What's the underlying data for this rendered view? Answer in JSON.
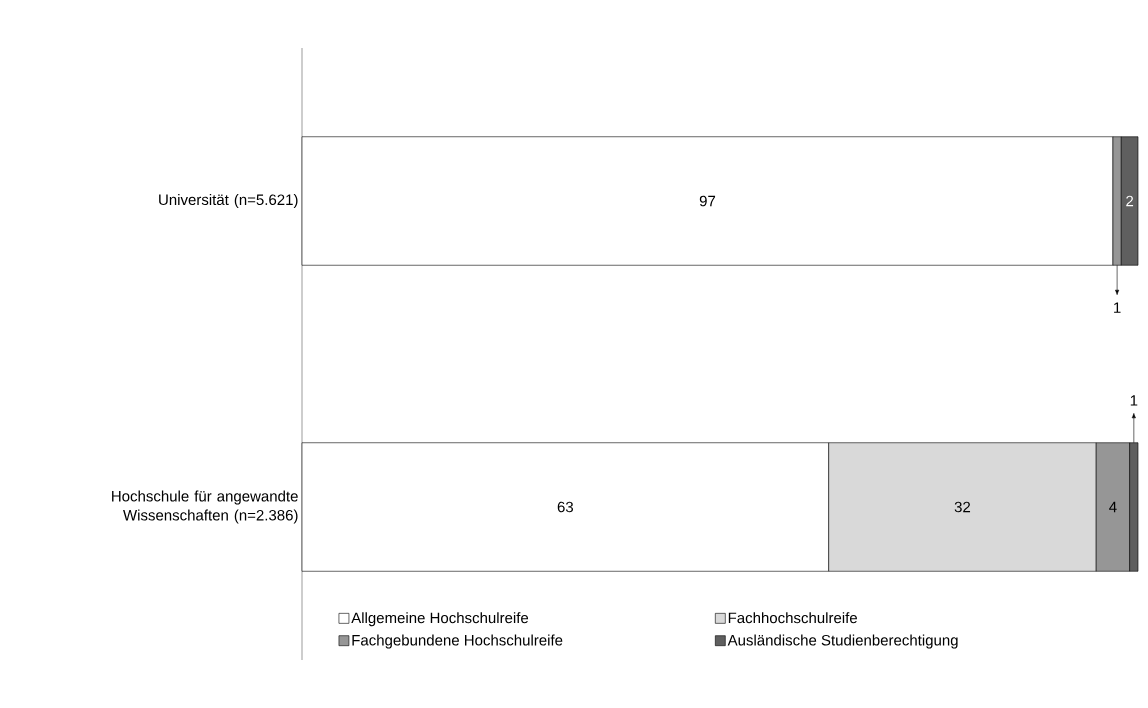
{
  "chart_data": {
    "type": "bar",
    "orientation": "horizontal",
    "stacked": true,
    "data_labels": true,
    "legend": "bottom",
    "categories": [
      "Universität (n=5.621)",
      "Hochschule für angewandte Wissenschaften (n=2.386)"
    ],
    "series": [
      {
        "name": "Allgemeine Hochschulreife",
        "color": "#ffffff",
        "values": [
          97,
          63
        ]
      },
      {
        "name": "Fachhochschulreife",
        "color": "#d9d9d9",
        "values": [
          null,
          32
        ]
      },
      {
        "name": "Fachgebundene Hochschulreife",
        "color": "#969696",
        "values": [
          1,
          4
        ]
      },
      {
        "name": "Ausländische Studienberechtigung",
        "color": "#5f5f5f",
        "values": [
          2,
          1
        ]
      }
    ]
  }
}
